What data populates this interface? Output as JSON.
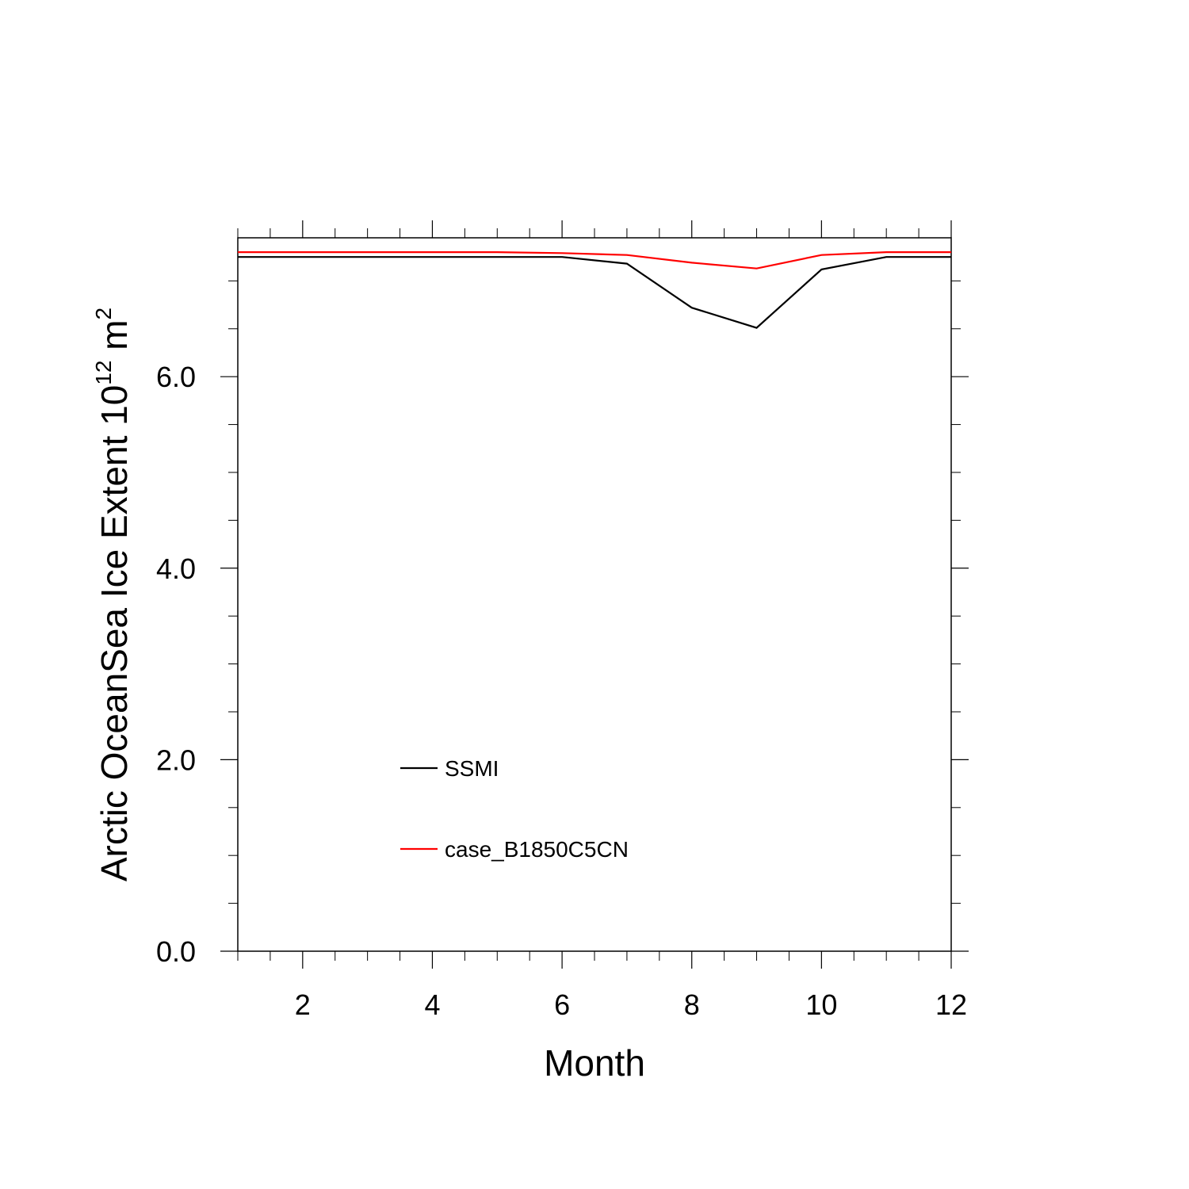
{
  "chart_data": {
    "type": "line",
    "title": "",
    "xlabel": "Month",
    "ylabel_main": "Arctic OceanSea Ice Extent 10",
    "ylabel_exp": "12",
    "ylabel_unit": " m",
    "ylabel_unit_exp": "2",
    "xlim": [
      1,
      12
    ],
    "ylim": [
      0,
      7.45
    ],
    "xticks": [
      2,
      4,
      6,
      8,
      10,
      12
    ],
    "xtick_labels": [
      "2",
      "4",
      "6",
      "8",
      "10",
      "12"
    ],
    "yticks": [
      0,
      2,
      4,
      6
    ],
    "ytick_labels": [
      "0.0",
      "2.0",
      "4.0",
      "6.0"
    ],
    "legend_position": "lower-left",
    "x": [
      1,
      2,
      3,
      4,
      5,
      6,
      7,
      8,
      9,
      10,
      11,
      12
    ],
    "series": [
      {
        "name": "SSMI",
        "color": "#000000",
        "values": [
          7.25,
          7.25,
          7.25,
          7.25,
          7.25,
          7.25,
          7.18,
          6.72,
          6.51,
          7.12,
          7.25,
          7.25
        ]
      },
      {
        "name": "case_B1850C5CN",
        "color": "#ff0000",
        "values": [
          7.3,
          7.3,
          7.3,
          7.3,
          7.3,
          7.29,
          7.27,
          7.19,
          7.13,
          7.27,
          7.3,
          7.3
        ]
      }
    ]
  }
}
